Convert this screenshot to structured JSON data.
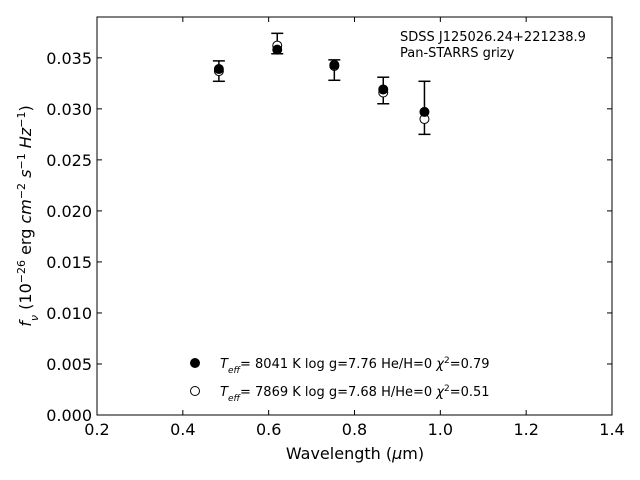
{
  "chart_data": {
    "type": "scatter",
    "title_lines": [
      "SDSS J125026.24+221238.9",
      "Pan-STARRS grizy"
    ],
    "xlabel": "Wavelength (μm)",
    "ylabel": "f_ν (10^-26 erg cm^-2 s^-1 Hz^-1)",
    "xlim": [
      0.2,
      1.4
    ],
    "ylim": [
      0.0,
      0.039
    ],
    "xticks": [
      0.2,
      0.4,
      0.6,
      0.8,
      1.0,
      1.2,
      1.4
    ],
    "xtick_labels": [
      "0.2",
      "0.4",
      "0.6",
      "0.8",
      "1.0",
      "1.2",
      "1.4"
    ],
    "yticks": [
      0.0,
      0.005,
      0.01,
      0.015,
      0.02,
      0.025,
      0.03,
      0.035
    ],
    "ytick_labels": [
      "0.000",
      "0.005",
      "0.010",
      "0.015",
      "0.020",
      "0.025",
      "0.030",
      "0.035"
    ],
    "observed": {
      "x": [
        0.484,
        0.62,
        0.753,
        0.867,
        0.963
      ],
      "y": [
        0.0337,
        0.0364,
        0.0338,
        0.0318,
        0.0301
      ],
      "yerr": [
        0.001,
        0.001,
        0.001,
        0.0013,
        0.0026
      ]
    },
    "series": [
      {
        "marker": "filled",
        "x": [
          0.484,
          0.62,
          0.753,
          0.867,
          0.963
        ],
        "y": [
          0.0339,
          0.0358,
          0.0343,
          0.0319,
          0.0297
        ]
      },
      {
        "marker": "open",
        "x": [
          0.484,
          0.62,
          0.753,
          0.867,
          0.963
        ],
        "y": [
          0.0337,
          0.0362,
          0.0342,
          0.0316,
          0.029
        ]
      }
    ],
    "legend": {
      "placement": "lower-center",
      "entries": [
        {
          "marker": "filled",
          "label": "T_eff=  8041 K  log g=7.76  He/H=0  χ²=0.79"
        },
        {
          "marker": "open",
          "label": "T_eff=  7869 K  log g=7.68  H/He=0  χ²=0.51"
        }
      ]
    }
  }
}
